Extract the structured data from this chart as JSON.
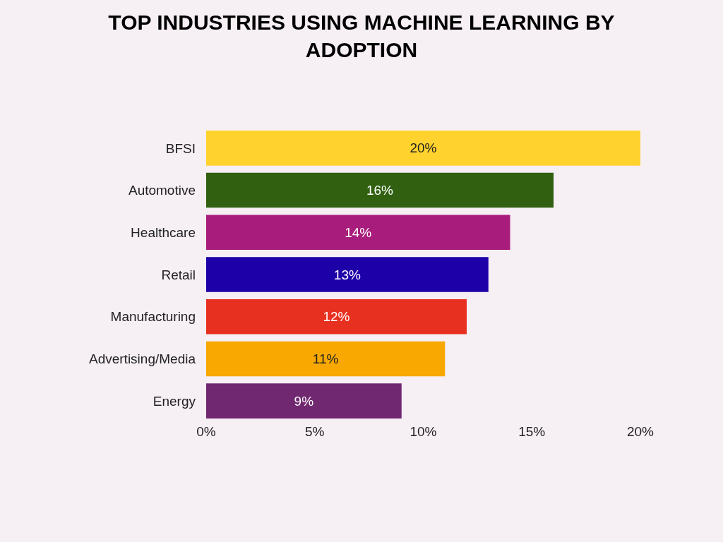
{
  "chart_data": {
    "type": "bar",
    "orientation": "horizontal",
    "title": "TOP INDUSTRIES USING MACHINE LEARNING BY ADOPTION",
    "categories": [
      "BFSI",
      "Automotive",
      "Healthcare",
      "Retail",
      "Manufacturing",
      "Advertising/Media",
      "Energy"
    ],
    "values": [
      20,
      16,
      14,
      13,
      12,
      11,
      9
    ],
    "colors": [
      "#ffd22e",
      "#306010",
      "#a81c7c",
      "#1e00a8",
      "#e83020",
      "#f8a800",
      "#702870"
    ],
    "value_labels": [
      "20%",
      "16%",
      "14%",
      "13%",
      "12%",
      "11%",
      "9%"
    ],
    "xlim": [
      0,
      20
    ],
    "xticks": [
      {
        "value": 0,
        "label": "0%"
      },
      {
        "value": 5,
        "label": "5%"
      },
      {
        "value": 10,
        "label": "10%"
      },
      {
        "value": 15,
        "label": "15%"
      },
      {
        "value": 20,
        "label": "20%"
      }
    ],
    "grid": false
  }
}
